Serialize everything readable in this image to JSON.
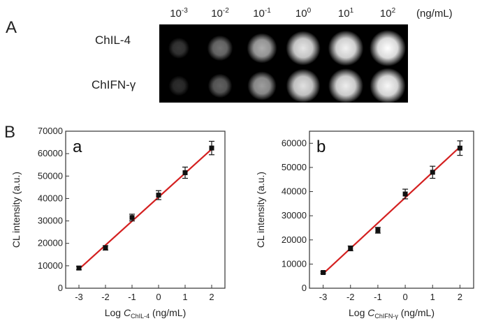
{
  "panel_a": {
    "letter": "A",
    "unit": "(ng/mL)",
    "concentrations": [
      {
        "base": "10",
        "exp": "-3"
      },
      {
        "base": "10",
        "exp": "-2"
      },
      {
        "base": "10",
        "exp": "-1"
      },
      {
        "base": "10",
        "exp": "0"
      },
      {
        "base": "10",
        "exp": "1"
      },
      {
        "base": "10",
        "exp": "2"
      }
    ],
    "rows": [
      {
        "label": "ChIL-4",
        "intensities": [
          0.22,
          0.45,
          0.68,
          0.9,
          0.95,
          1.0
        ]
      },
      {
        "label": "ChIFN-γ",
        "intensities": [
          0.18,
          0.38,
          0.62,
          0.88,
          0.93,
          0.97
        ]
      }
    ]
  },
  "panel_b": {
    "letter": "B"
  },
  "chart_data": [
    {
      "type": "scatter",
      "panel_label": "a",
      "x": [
        -3,
        -2,
        -1,
        0,
        1,
        2
      ],
      "y": [
        9000,
        18000,
        31500,
        41500,
        51500,
        62500
      ],
      "yerr": [
        800,
        1000,
        1500,
        2000,
        2500,
        3000
      ],
      "fit_line": {
        "x": [
          -3,
          2
        ],
        "y": [
          8500,
          62000
        ],
        "color": "#d42020"
      },
      "ylabel": "CL intensity (a.u.)",
      "xlabel_prefix": "Log ",
      "xlabel_var": "C",
      "xlabel_sub": "ChIL-4",
      "xlabel_suffix": " (ng/mL)",
      "xlim": [
        -3.5,
        2.5
      ],
      "ylim": [
        0,
        70000
      ],
      "xticks": [
        -3,
        -2,
        -1,
        0,
        1,
        2
      ],
      "yticks": [
        0,
        10000,
        20000,
        30000,
        40000,
        50000,
        60000,
        70000
      ],
      "grid": false
    },
    {
      "type": "scatter",
      "panel_label": "b",
      "x": [
        -3,
        -2,
        -1,
        0,
        1,
        2
      ],
      "y": [
        6500,
        16500,
        24000,
        39000,
        48000,
        58000
      ],
      "yerr": [
        400,
        1000,
        1200,
        2000,
        2500,
        3000
      ],
      "fit_line": {
        "x": [
          -3,
          2
        ],
        "y": [
          6000,
          58500
        ],
        "color": "#d42020"
      },
      "ylabel": "CL intensity (a.u.)",
      "xlabel_prefix": "Log ",
      "xlabel_var": "C",
      "xlabel_sub": "ChIFN-γ",
      "xlabel_suffix": " (ng/mL)",
      "xlim": [
        -3.5,
        2.5
      ],
      "ylim": [
        0,
        65000
      ],
      "xticks": [
        -3,
        -2,
        -1,
        0,
        1,
        2
      ],
      "yticks": [
        0,
        10000,
        20000,
        30000,
        40000,
        50000,
        60000
      ],
      "grid": false
    }
  ]
}
